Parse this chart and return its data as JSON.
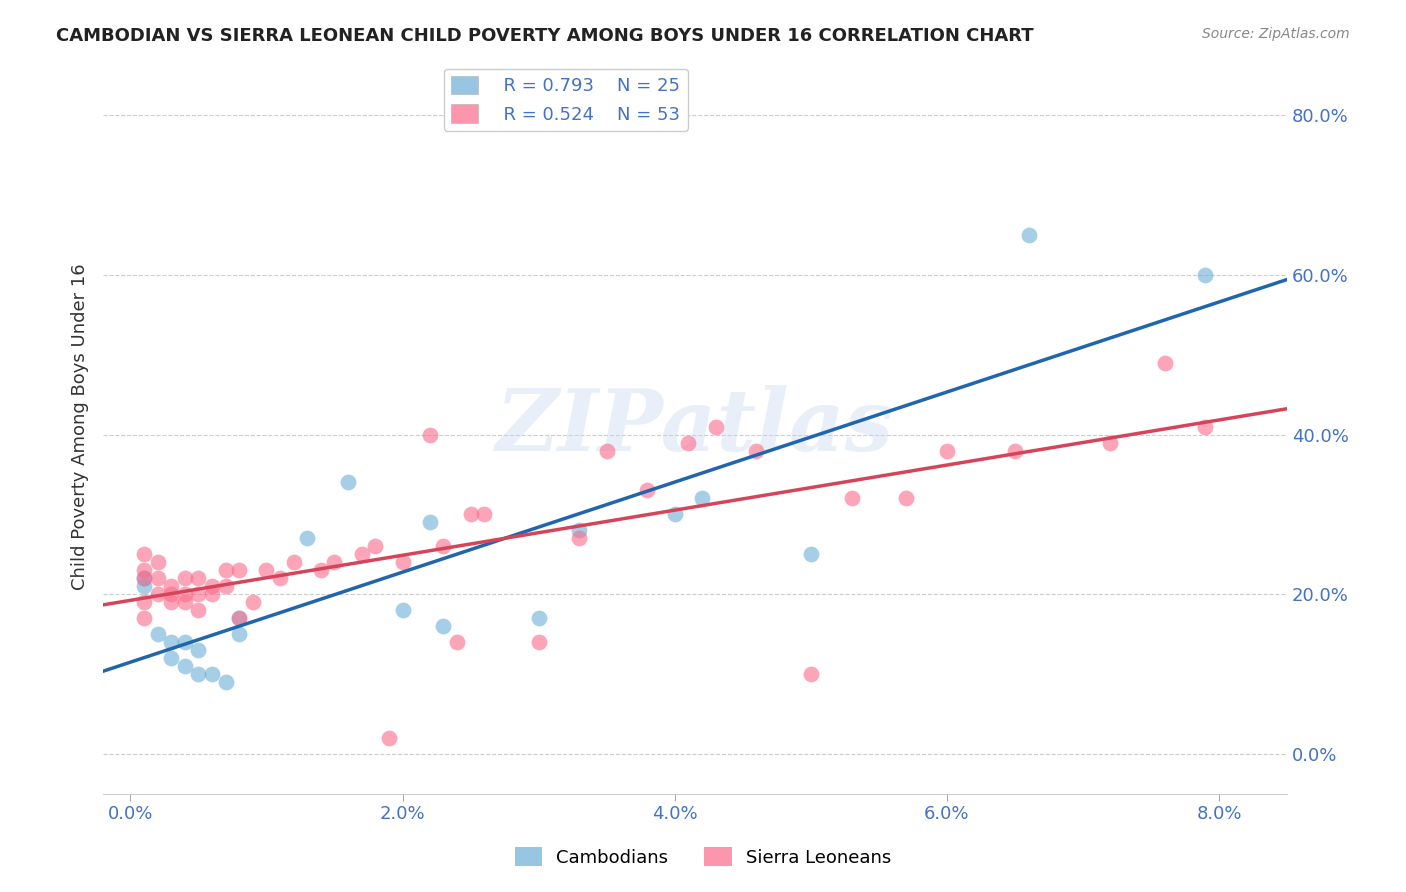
{
  "title": "CAMBODIAN VS SIERRA LEONEAN CHILD POVERTY AMONG BOYS UNDER 16 CORRELATION CHART",
  "source": "Source: ZipAtlas.com",
  "xlabel_ticks": [
    "0.0%",
    "2.0%",
    "4.0%",
    "6.0%",
    "8.0%"
  ],
  "xlabel_tick_vals": [
    0.0,
    0.02,
    0.04,
    0.06,
    0.08
  ],
  "ylabel_ticks": [
    "0.0%",
    "20.0%",
    "40.0%",
    "60.0%",
    "80.0%"
  ],
  "ylabel_tick_vals": [
    0.0,
    0.2,
    0.4,
    0.6,
    0.8
  ],
  "ylabel": "Child Poverty Among Boys Under 16",
  "xlim": [
    -0.002,
    0.085
  ],
  "ylim": [
    -0.05,
    0.87
  ],
  "cambodian_color": "#6baed6",
  "sierra_leonean_color": "#fb6a8a",
  "cambodian_line_color": "#2166ac",
  "sierra_leonean_line_color": "#d6445a",
  "legend_R_cambodian": "R = 0.793",
  "legend_N_cambodian": "N = 25",
  "legend_R_sierra": "R = 0.524",
  "legend_N_sierra": "N = 53",
  "watermark": "ZIPatlas",
  "cambodian_x": [
    0.001,
    0.001,
    0.002,
    0.003,
    0.003,
    0.004,
    0.004,
    0.005,
    0.005,
    0.006,
    0.007,
    0.008,
    0.008,
    0.013,
    0.016,
    0.02,
    0.022,
    0.023,
    0.03,
    0.033,
    0.04,
    0.042,
    0.05,
    0.066,
    0.079
  ],
  "cambodian_y": [
    0.22,
    0.21,
    0.15,
    0.12,
    0.14,
    0.14,
    0.11,
    0.13,
    0.1,
    0.1,
    0.09,
    0.17,
    0.15,
    0.27,
    0.34,
    0.18,
    0.29,
    0.16,
    0.17,
    0.28,
    0.3,
    0.32,
    0.25,
    0.65,
    0.6
  ],
  "sierra_leonean_x": [
    0.001,
    0.001,
    0.001,
    0.001,
    0.001,
    0.002,
    0.002,
    0.002,
    0.003,
    0.003,
    0.003,
    0.004,
    0.004,
    0.004,
    0.005,
    0.005,
    0.005,
    0.006,
    0.006,
    0.007,
    0.007,
    0.008,
    0.008,
    0.009,
    0.01,
    0.011,
    0.012,
    0.014,
    0.015,
    0.017,
    0.018,
    0.019,
    0.02,
    0.022,
    0.023,
    0.024,
    0.025,
    0.026,
    0.03,
    0.033,
    0.035,
    0.038,
    0.041,
    0.043,
    0.046,
    0.05,
    0.053,
    0.057,
    0.06,
    0.065,
    0.072,
    0.076,
    0.079
  ],
  "sierra_leonean_y": [
    0.25,
    0.23,
    0.22,
    0.19,
    0.17,
    0.24,
    0.22,
    0.2,
    0.21,
    0.2,
    0.19,
    0.22,
    0.2,
    0.19,
    0.22,
    0.2,
    0.18,
    0.21,
    0.2,
    0.23,
    0.21,
    0.23,
    0.17,
    0.19,
    0.23,
    0.22,
    0.24,
    0.23,
    0.24,
    0.25,
    0.26,
    0.02,
    0.24,
    0.4,
    0.26,
    0.14,
    0.3,
    0.3,
    0.14,
    0.27,
    0.38,
    0.33,
    0.39,
    0.41,
    0.38,
    0.1,
    0.32,
    0.32,
    0.38,
    0.38,
    0.39,
    0.49,
    0.41
  ]
}
